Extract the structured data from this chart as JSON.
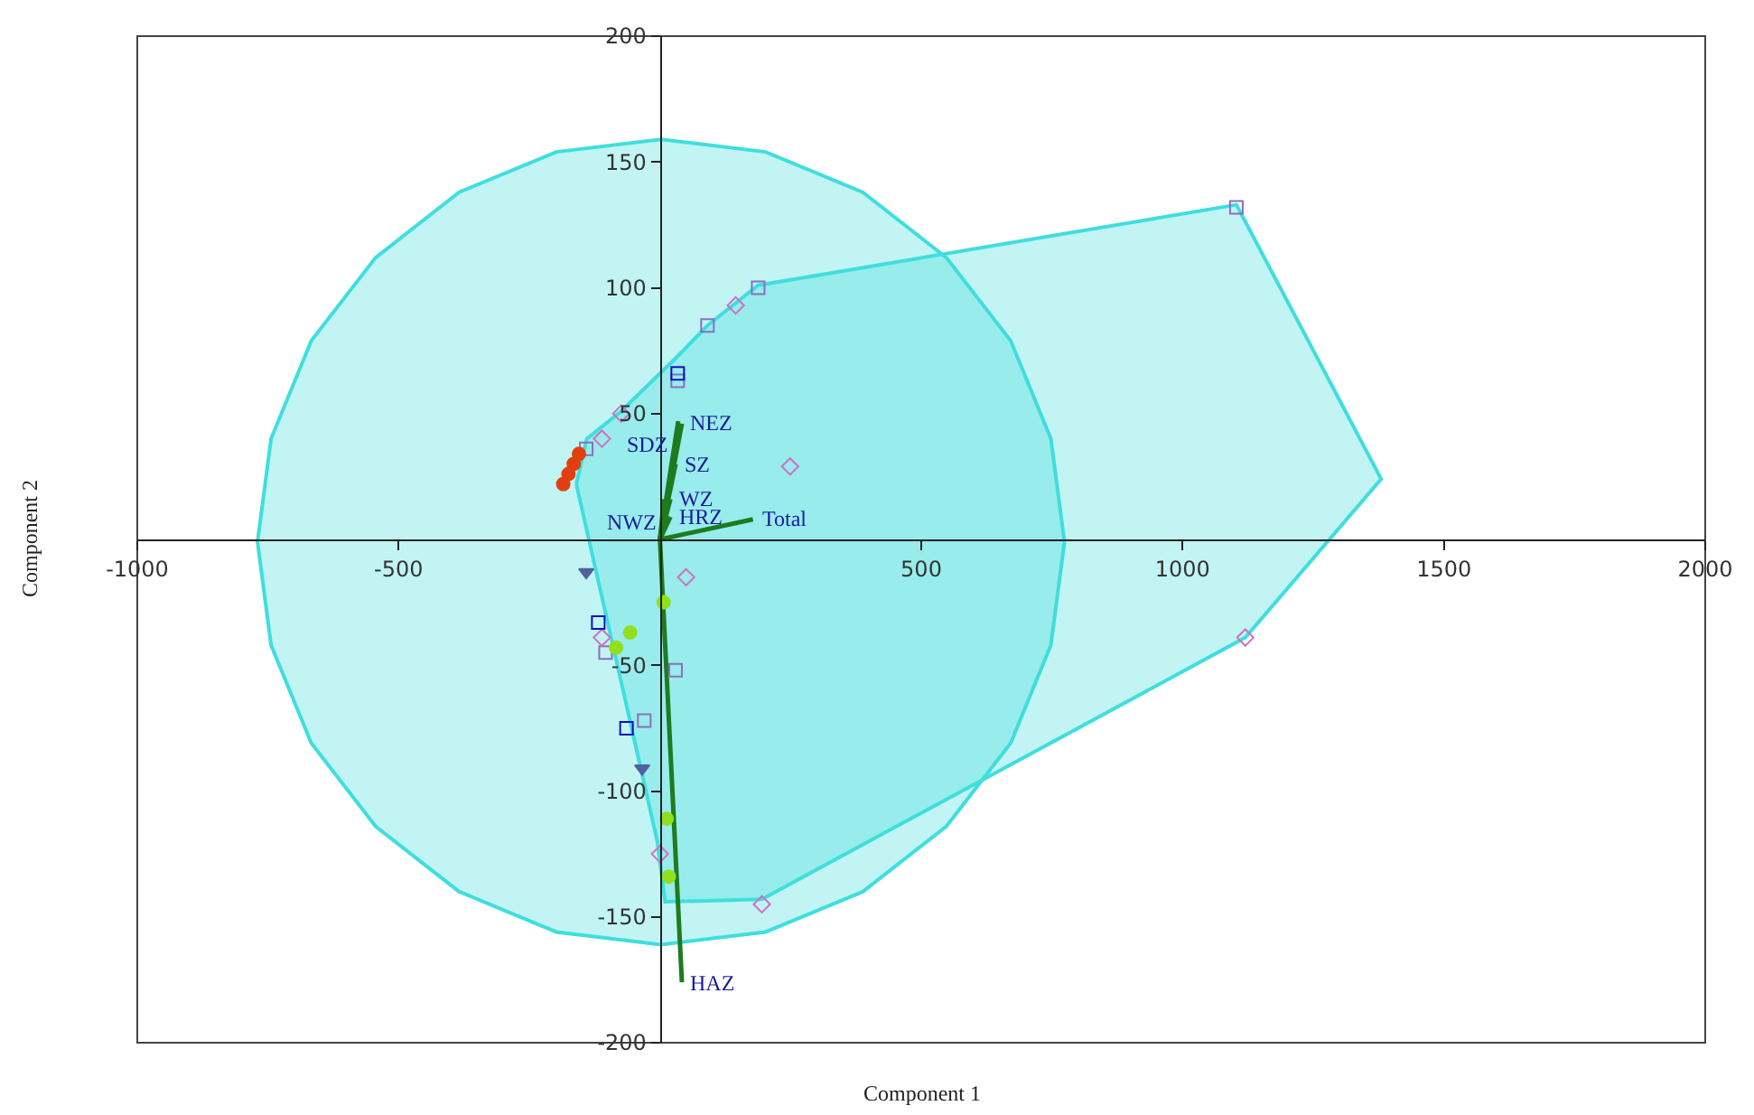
{
  "chart_data": {
    "type": "scatter",
    "xlabel": "Component 1",
    "ylabel": "Component 2",
    "xlim": [
      -1000,
      2000
    ],
    "ylim": [
      -200,
      200
    ],
    "xticks": [
      -1000,
      -500,
      500,
      1000,
      1500,
      2000
    ],
    "yticks": [
      -200,
      -150,
      -100,
      -50,
      50,
      100,
      150,
      200
    ],
    "grid": false,
    "annotations": [
      {
        "text": "SDZ",
        "x": 35,
        "y": 47
      },
      {
        "text": "NEZ",
        "x": 42,
        "y": 46
      },
      {
        "text": "SZ",
        "x": 30,
        "y": 30
      },
      {
        "text": "NWZ",
        "x": 8,
        "y": 16
      },
      {
        "text": "WZ",
        "x": 20,
        "y": 16
      },
      {
        "text": "HRZ",
        "x": 20,
        "y": 9
      },
      {
        "text": "Total",
        "x": 178,
        "y": 8
      },
      {
        "text": "HAZ",
        "x": 42,
        "y": -176
      }
    ],
    "series": [
      {
        "type": "area",
        "color": "#40dede",
        "x": [
          774,
          748,
          671,
          548,
          388,
          202,
          2,
          -198,
          -384,
          -544,
          -667,
          -744,
          -770,
          -744,
          -667,
          -544,
          -384,
          -198,
          2,
          202,
          388,
          548,
          671,
          748
        ],
        "values": [
          -1,
          40,
          79,
          112,
          138,
          154,
          159,
          154,
          138,
          112,
          79,
          40,
          -1,
          -42,
          -81,
          -114,
          -140,
          -156,
          -161,
          -156,
          -140,
          -114,
          -81,
          -42
        ]
      },
      {
        "type": "area",
        "color": "#40dede",
        "x": [
          -160,
          -140,
          -74,
          30,
          91,
          188,
          1103,
          1380,
          1120,
          195,
          10,
          -5
        ],
        "values": [
          22,
          40,
          51,
          72,
          85,
          101,
          133,
          24,
          -39,
          -143,
          -144,
          -120
        ]
      },
      {
        "type": "line",
        "color": "#1e7b1e",
        "x": [
          0,
          35,
          null,
          0,
          42,
          null,
          0,
          30,
          null,
          0,
          8,
          null,
          0,
          20,
          null,
          0,
          20,
          null,
          0,
          178,
          null,
          0,
          42
        ],
        "values": [
          0,
          47,
          null,
          0,
          46,
          null,
          0,
          30,
          null,
          0,
          16,
          null,
          0,
          16,
          null,
          0,
          9,
          null,
          0,
          8,
          null,
          0,
          -176
        ]
      },
      {
        "marker": "square",
        "color": "#8a6fc0",
        "x": [
          188,
          91,
          1103,
          34,
          -141,
          -104,
          30,
          -30
        ],
        "values": [
          100,
          85,
          132,
          63,
          36,
          -45,
          -52,
          -72
        ]
      },
      {
        "marker": "diamond",
        "color": "#d070c0",
        "x": [
          145,
          249,
          50,
          -111,
          1120,
          195,
          0,
          -74,
          -111
        ],
        "values": [
          93,
          29,
          -15,
          -39,
          -39,
          -145,
          -125,
          50,
          40
        ]
      },
      {
        "marker": "square",
        "color": "#1010c0",
        "x": [
          34,
          -118,
          -64
        ],
        "values": [
          66,
          -33,
          -75
        ]
      },
      {
        "marker": "circle",
        "color": "#e04010",
        "x": [
          -185,
          -175,
          -165,
          -155
        ],
        "values": [
          22,
          26,
          30,
          34
        ]
      },
      {
        "marker": "circle",
        "color": "#90e020",
        "x": [
          -57,
          -84,
          7,
          13,
          17
        ],
        "values": [
          -37,
          -43,
          -25,
          -111,
          -134
        ]
      },
      {
        "marker": "triangle",
        "color": "#5060a0",
        "x": [
          -141,
          -34
        ],
        "values": [
          -13,
          -91
        ]
      }
    ]
  }
}
